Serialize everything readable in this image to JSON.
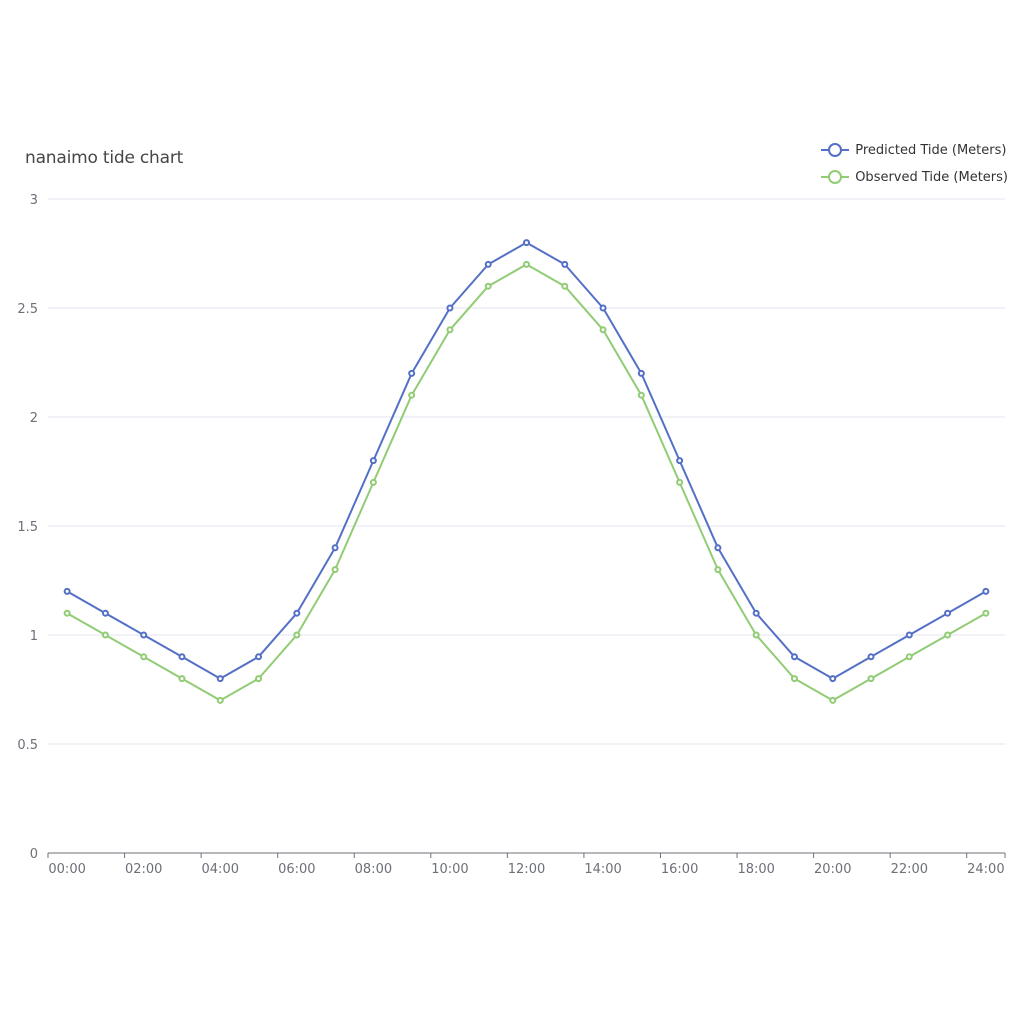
{
  "title": "nanaimo tide chart",
  "legend": [
    {
      "label": "Predicted Tide (Meters)",
      "color": "#5470c6"
    },
    {
      "label": "Observed Tide (Meters)",
      "color": "#91cc75"
    }
  ],
  "chart_data": {
    "type": "line",
    "title": "nanaimo tide chart",
    "xlabel": "",
    "ylabel": "",
    "categories": [
      "00:00",
      "01:00",
      "02:00",
      "03:00",
      "04:00",
      "05:00",
      "06:00",
      "07:00",
      "08:00",
      "09:00",
      "10:00",
      "11:00",
      "12:00",
      "13:00",
      "14:00",
      "15:00",
      "16:00",
      "17:00",
      "18:00",
      "19:00",
      "20:00",
      "21:00",
      "22:00",
      "23:00",
      "24:00"
    ],
    "x_tick_labels": [
      "00:00",
      "02:00",
      "04:00",
      "06:00",
      "08:00",
      "10:00",
      "12:00",
      "14:00",
      "16:00",
      "18:00",
      "20:00",
      "22:00",
      "24:00"
    ],
    "y_ticks": [
      "0",
      "0.5",
      "1",
      "1.5",
      "2",
      "2.5",
      "3"
    ],
    "ylim": [
      0,
      3
    ],
    "grid": true,
    "legend_position": "top-right",
    "series": [
      {
        "name": "Predicted Tide (Meters)",
        "color": "#5470c6",
        "values": [
          1.2,
          1.1,
          1.0,
          0.9,
          0.8,
          0.9,
          1.1,
          1.4,
          1.8,
          2.2,
          2.5,
          2.7,
          2.8,
          2.7,
          2.5,
          2.2,
          1.8,
          1.4,
          1.1,
          0.9,
          0.8,
          0.9,
          1.0,
          1.1,
          1.2
        ]
      },
      {
        "name": "Observed Tide (Meters)",
        "color": "#91cc75",
        "values": [
          1.1,
          1.0,
          0.9,
          0.8,
          0.7,
          0.8,
          1.0,
          1.3,
          1.7,
          2.1,
          2.4,
          2.6,
          2.7,
          2.6,
          2.4,
          2.1,
          1.7,
          1.3,
          1.0,
          0.8,
          0.7,
          0.8,
          0.9,
          1.0,
          1.1
        ]
      }
    ]
  }
}
